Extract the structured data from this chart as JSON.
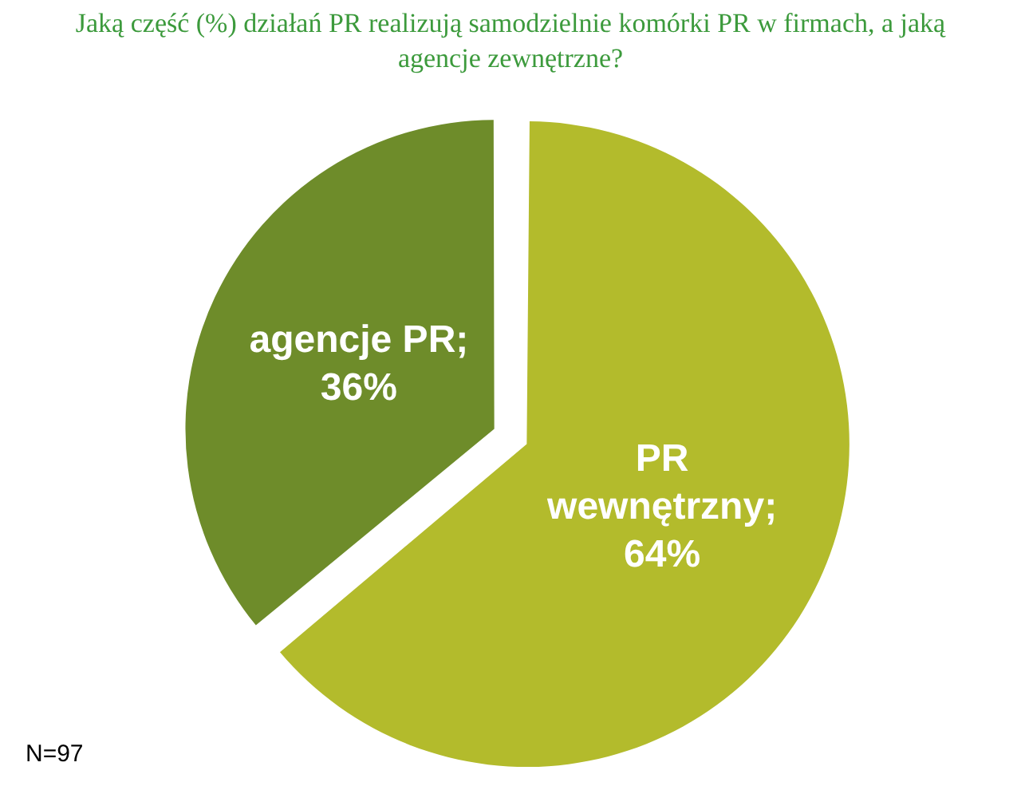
{
  "chart_data": {
    "type": "pie",
    "title": "Jaką część (%)  działań PR realizują samodzielnie komórki PR w firmach, a jaką agencje zewnętrzne?",
    "categories": [
      "PR wewnętrzny",
      "agencje PR"
    ],
    "values": [
      64,
      36
    ],
    "colors": [
      "#b3bb2c",
      "#6e8c2a"
    ],
    "value_labels": [
      "; 64%",
      "; 36%"
    ],
    "legend": false,
    "annotations": [
      "N=97"
    ]
  }
}
